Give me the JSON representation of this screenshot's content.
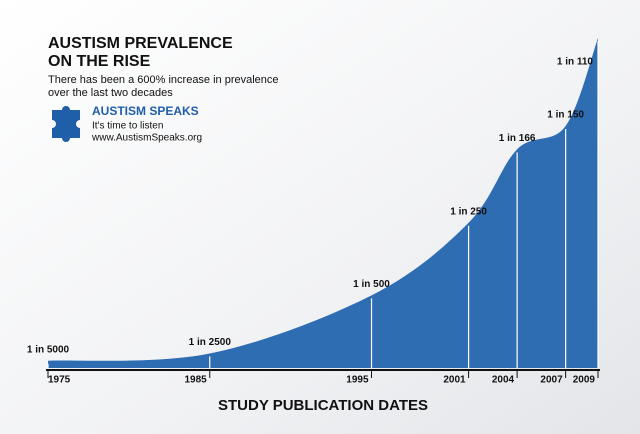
{
  "chart_data": {
    "type": "area",
    "title": [
      "AUSTISM PREVALENCE",
      "ON THE RISE"
    ],
    "subtitle": [
      "There has been a 600% increase in prevalence",
      "over the last two decades"
    ],
    "logo": {
      "name": "AUSTISM SPEAKS",
      "tagline": "It's time to listen",
      "url": "www.AustismSpeaks.org"
    },
    "x_label": "STUDY PUBLICATION DATES",
    "x": [
      1975,
      1985,
      1995,
      2001,
      2004,
      2007,
      2009
    ],
    "values": [
      5000,
      2500,
      500,
      250,
      166,
      150,
      110
    ],
    "value_labels": [
      "1 in 5000",
      "1 in 2500",
      "1 in 500",
      "1 in 250",
      "1 in 166",
      "1 in 150",
      "1 in 110"
    ],
    "color": "#2f6db3",
    "xlim": [
      1975,
      2009
    ],
    "xticks": [
      1975,
      1985,
      1995,
      2001,
      2004,
      2007,
      2009
    ]
  }
}
